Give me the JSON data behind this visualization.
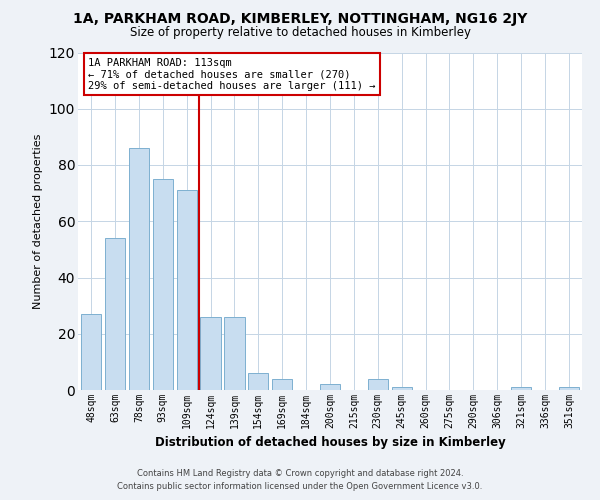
{
  "title": "1A, PARKHAM ROAD, KIMBERLEY, NOTTINGHAM, NG16 2JY",
  "subtitle": "Size of property relative to detached houses in Kimberley",
  "xlabel": "Distribution of detached houses by size in Kimberley",
  "ylabel": "Number of detached properties",
  "bar_labels": [
    "48sqm",
    "63sqm",
    "78sqm",
    "93sqm",
    "109sqm",
    "124sqm",
    "139sqm",
    "154sqm",
    "169sqm",
    "184sqm",
    "200sqm",
    "215sqm",
    "230sqm",
    "245sqm",
    "260sqm",
    "275sqm",
    "290sqm",
    "306sqm",
    "321sqm",
    "336sqm",
    "351sqm"
  ],
  "bar_values": [
    27,
    54,
    86,
    75,
    71,
    26,
    26,
    6,
    4,
    0,
    2,
    0,
    4,
    1,
    0,
    0,
    0,
    0,
    1,
    0,
    1
  ],
  "bar_color": "#c8ddf0",
  "bar_edge_color": "#7db0d0",
  "vline_x_index": 4.5,
  "vline_color": "#cc0000",
  "annotation_text": "1A PARKHAM ROAD: 113sqm\n← 71% of detached houses are smaller (270)\n29% of semi-detached houses are larger (111) →",
  "annotation_box_color": "white",
  "annotation_box_edge_color": "#cc0000",
  "ylim": [
    0,
    120
  ],
  "yticks": [
    0,
    20,
    40,
    60,
    80,
    100,
    120
  ],
  "footer_line1": "Contains HM Land Registry data © Crown copyright and database right 2024.",
  "footer_line2": "Contains public sector information licensed under the Open Government Licence v3.0.",
  "bg_color": "#eef2f7",
  "plot_bg_color": "#ffffff",
  "grid_color": "#c5d5e5"
}
